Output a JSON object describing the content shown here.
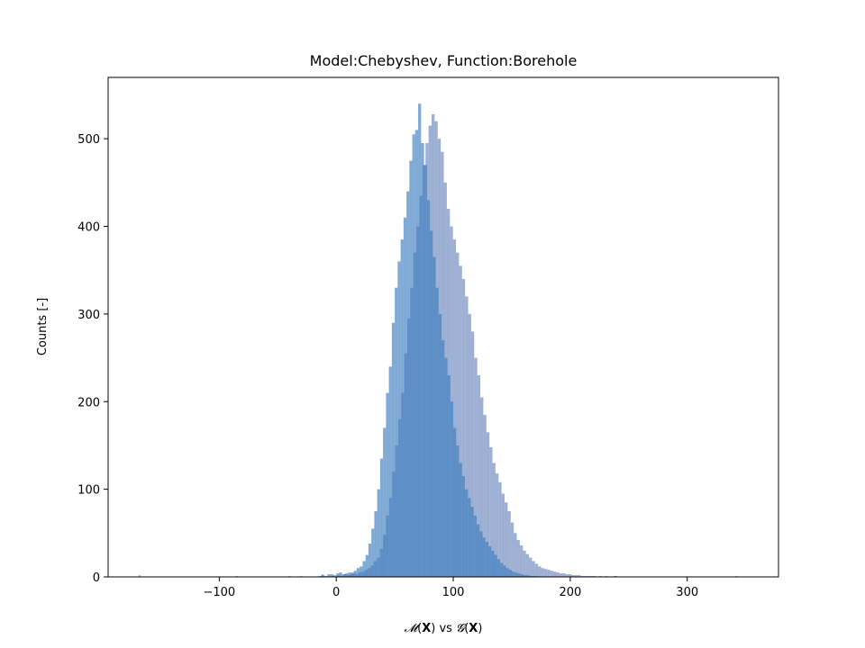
{
  "chart_data": {
    "type": "bar",
    "title": "Model:Chebyshev, Function:Borehole",
    "xlabel": {
      "m_symbol": "𝓜",
      "lp": "(",
      "var": "X",
      "rp": ")",
      "mid": " vs ",
      "g_symbol": "𝓖"
    },
    "ylabel": "Counts [-]",
    "xlim": [
      -195,
      378
    ],
    "ylim": [
      0,
      570
    ],
    "xticks": [
      -100,
      0,
      100,
      200,
      300
    ],
    "xtick_labels": [
      "−100",
      "0",
      "100",
      "200",
      "300"
    ],
    "yticks": [
      0,
      100,
      200,
      300,
      400,
      500
    ],
    "ytick_labels": [
      "0",
      "100",
      "200",
      "300",
      "400",
      "500"
    ],
    "grid": false,
    "legend": "none",
    "series": [
      {
        "color": "#6a84bd",
        "opacity": 0.65,
        "bins_start": -4.3,
        "bin_width": 2.6,
        "counts": [
          1,
          0,
          2,
          1,
          3,
          2,
          3,
          4,
          3,
          5,
          6,
          8,
          10,
          13,
          18,
          22,
          32,
          48,
          70,
          90,
          120,
          150,
          180,
          210,
          255,
          295,
          330,
          370,
          400,
          435,
          470,
          495,
          515,
          528,
          520,
          500,
          485,
          450,
          420,
          400,
          385,
          370,
          355,
          340,
          320,
          300,
          280,
          250,
          230,
          205,
          185,
          165,
          148,
          130,
          118,
          108,
          95,
          85,
          75,
          62,
          50,
          42,
          36,
          30,
          26,
          22,
          18,
          15,
          12,
          10,
          9,
          8,
          7,
          6,
          5,
          4,
          4,
          3,
          3,
          2,
          2,
          2,
          1,
          1,
          1,
          1,
          1,
          0,
          1,
          0,
          1,
          0,
          0,
          1
        ]
      },
      {
        "color": "#3a7dbf",
        "opacity": 0.65,
        "bins_start": -15.0,
        "bin_width": 2.5,
        "counts": [
          1,
          2,
          1,
          3,
          3,
          2,
          4,
          5,
          3,
          4,
          5,
          5,
          7,
          10,
          12,
          18,
          25,
          38,
          55,
          75,
          100,
          135,
          170,
          210,
          240,
          290,
          330,
          360,
          385,
          410,
          440,
          475,
          505,
          510,
          540,
          495,
          470,
          430,
          395,
          365,
          330,
          300,
          270,
          250,
          230,
          200,
          170,
          150,
          130,
          115,
          100,
          90,
          80,
          70,
          60,
          52,
          45,
          40,
          35,
          30,
          25,
          20,
          16,
          13,
          10,
          8,
          6,
          5,
          4,
          3,
          2,
          2,
          1,
          1,
          1
        ]
      }
    ],
    "outlier_bars": [
      {
        "x": -168,
        "count": 2
      },
      {
        "x": -85,
        "count": 1
      },
      {
        "x": -40,
        "count": 1
      },
      {
        "x": -30,
        "count": 1
      },
      {
        "x": -12,
        "count": 3
      },
      {
        "x": 238,
        "count": 1
      },
      {
        "x": 342,
        "count": 1
      }
    ]
  }
}
